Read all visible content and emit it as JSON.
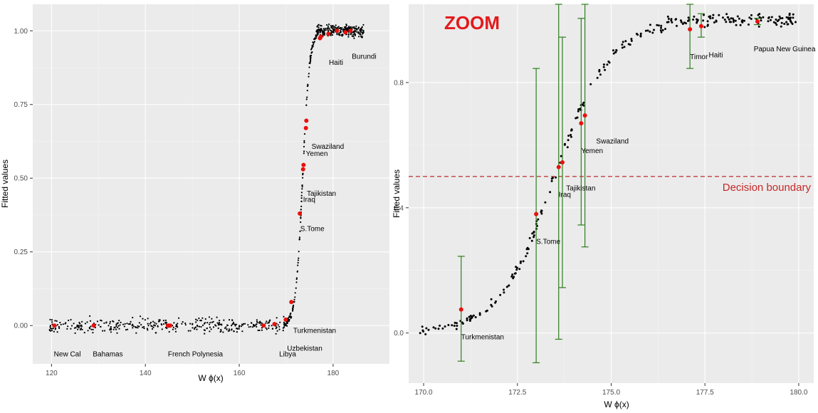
{
  "chart_data": [
    {
      "type": "scatter",
      "title": "",
      "xlabel": "W  ϕ(x)",
      "ylabel": "Fitted values",
      "xlim": [
        116,
        192
      ],
      "ylim": [
        -0.13,
        1.09
      ],
      "grid": true,
      "xticks": [
        120,
        140,
        160,
        180
      ],
      "xtick_labels": [
        "120",
        "140",
        "160",
        "180"
      ],
      "yticks": [
        0,
        0.25,
        0.5,
        0.75,
        1
      ],
      "ytick_labels": [
        "0.00",
        "0.25",
        "0.50",
        "0.75",
        "1.00"
      ],
      "highlighted_points": [
        {
          "x": 120.6,
          "y": 0.0
        },
        {
          "x": 129.0,
          "y": 0.0
        },
        {
          "x": 144.8,
          "y": 0.0
        },
        {
          "x": 145.3,
          "y": 0.0
        },
        {
          "x": 165.2,
          "y": 0.0
        },
        {
          "x": 167.5,
          "y": 0.005
        },
        {
          "x": 169.9,
          "y": 0.02
        },
        {
          "x": 171.1,
          "y": 0.08
        },
        {
          "x": 172.9,
          "y": 0.38
        },
        {
          "x": 173.6,
          "y": 0.53
        },
        {
          "x": 173.7,
          "y": 0.545
        },
        {
          "x": 174.2,
          "y": 0.67
        },
        {
          "x": 174.3,
          "y": 0.695
        },
        {
          "x": 177.2,
          "y": 0.975
        },
        {
          "x": 177.4,
          "y": 0.98
        },
        {
          "x": 179.0,
          "y": 0.99
        },
        {
          "x": 180.8,
          "y": 1.0
        },
        {
          "x": 182.6,
          "y": 0.995
        },
        {
          "x": 183.7,
          "y": 1.0
        }
      ],
      "annotations": [
        {
          "text": "New Cal",
          "x": 120.5,
          "y": -0.105
        },
        {
          "text": "Bahamas",
          "x": 128.8,
          "y": -0.105
        },
        {
          "text": "French Polynesia",
          "x": 144.8,
          "y": -0.105
        },
        {
          "text": "Libya",
          "x": 168.5,
          "y": -0.105
        },
        {
          "text": "Uzbekistan",
          "x": 170.2,
          "y": -0.085
        },
        {
          "text": "Turkmenistan",
          "x": 171.5,
          "y": -0.025
        },
        {
          "text": "S.Tome",
          "x": 173.0,
          "y": 0.32
        },
        {
          "text": "Iraq",
          "x": 173.6,
          "y": 0.42
        },
        {
          "text": "Tajikistan",
          "x": 174.4,
          "y": 0.44
        },
        {
          "text": "Yemen",
          "x": 174.2,
          "y": 0.575
        },
        {
          "text": "Swaziland",
          "x": 175.4,
          "y": 0.6
        },
        {
          "text": "Haiti",
          "x": 179.1,
          "y": 0.885
        },
        {
          "text": "Burundi",
          "x": 184.0,
          "y": 0.905
        }
      ]
    },
    {
      "type": "scatter",
      "title": "",
      "xlabel": "W  ϕ(x)",
      "ylabel": "Fitted values",
      "xlim": [
        169.6,
        180.4
      ],
      "ylim": [
        -0.16,
        1.05
      ],
      "grid": true,
      "xticks": [
        170,
        172.5,
        175,
        177.5,
        180
      ],
      "xtick_labels": [
        "170.0",
        "172.5",
        "175.0",
        "177.5",
        "180.0"
      ],
      "yticks": [
        0,
        0.4,
        0.8
      ],
      "ytick_labels": [
        "0.0",
        "0.4",
        "0.8"
      ],
      "decision_boundary": 0.5,
      "highlighted_points": [
        {
          "x": 171.0,
          "y": 0.075,
          "lo": -0.09,
          "hi": 0.245
        },
        {
          "x": 173.0,
          "y": 0.38,
          "lo": -0.095,
          "hi": 0.845
        },
        {
          "x": 173.6,
          "y": 0.53,
          "lo": -0.02,
          "hi": 1.07
        },
        {
          "x": 173.7,
          "y": 0.545,
          "lo": 0.145,
          "hi": 0.945
        },
        {
          "x": 174.2,
          "y": 0.67,
          "lo": 0.345,
          "hi": 1.005
        },
        {
          "x": 174.3,
          "y": 0.695,
          "lo": 0.275,
          "hi": 1.115
        },
        {
          "x": 177.1,
          "y": 0.97,
          "lo": 0.845,
          "hi": 1.095
        },
        {
          "x": 177.4,
          "y": 0.98,
          "lo": 0.945,
          "hi": 1.02
        },
        {
          "x": 178.9,
          "y": 0.995,
          "lo": 0.985,
          "hi": 1.005
        }
      ],
      "annotations": [
        {
          "text": "Turkmenistan",
          "x": 171.0,
          "y": -0.02
        },
        {
          "text": "S.Tome",
          "x": 173.0,
          "y": 0.285
        },
        {
          "text": "Iraq",
          "x": 173.6,
          "y": 0.435
        },
        {
          "text": "Tajikistan",
          "x": 173.8,
          "y": 0.455
        },
        {
          "text": "Yemen",
          "x": 174.2,
          "y": 0.575
        },
        {
          "text": "Swaziland",
          "x": 174.6,
          "y": 0.605
        },
        {
          "text": "Timor",
          "x": 177.1,
          "y": 0.875
        },
        {
          "text": "Haiti",
          "x": 177.6,
          "y": 0.88
        },
        {
          "text": "Papua New Guinea",
          "x": 178.8,
          "y": 0.9
        }
      ],
      "panel_label": "ZOOM",
      "boundary_label": "Decision boundary"
    }
  ]
}
